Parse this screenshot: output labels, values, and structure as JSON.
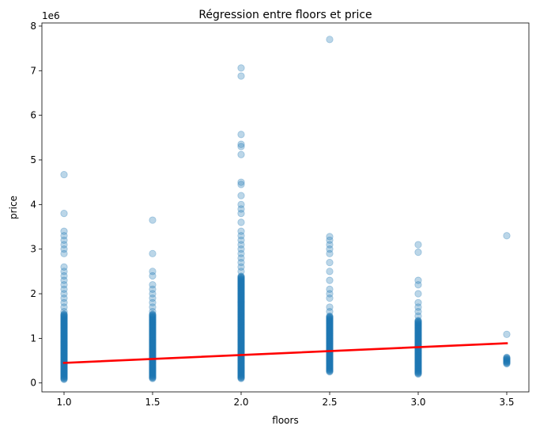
{
  "chart_data": {
    "type": "scatter",
    "title": "Régression entre floors et price",
    "xlabel": "floors",
    "ylabel": "price",
    "y_offset_label": "1e6",
    "xlim": [
      0.875,
      3.625
    ],
    "ylim": [
      -0.2,
      8.07
    ],
    "x_ticks": [
      1.0,
      1.5,
      2.0,
      2.5,
      3.0,
      3.5
    ],
    "x_tick_labels": [
      "1.0",
      "1.5",
      "2.0",
      "2.5",
      "3.0",
      "3.5"
    ],
    "y_ticks": [
      0,
      1,
      2,
      3,
      4,
      5,
      6,
      7,
      8
    ],
    "y_tick_labels": [
      "0",
      "1",
      "2",
      "3",
      "4",
      "5",
      "6",
      "7",
      "8"
    ],
    "grid": false,
    "point_color": "#1f77b4",
    "line_color": "#ff0000",
    "scatter_columns": [
      {
        "x": 1.0,
        "dense_range": [
          0.08,
          1.55
        ],
        "outliers": [
          1.6,
          1.7,
          1.8,
          1.9,
          2.0,
          2.1,
          2.2,
          2.3,
          2.4,
          2.5,
          2.6,
          2.9,
          3.0,
          3.1,
          3.2,
          3.3,
          3.4,
          3.8,
          4.67
        ]
      },
      {
        "x": 1.5,
        "dense_range": [
          0.1,
          1.55
        ],
        "outliers": [
          1.6,
          1.7,
          1.8,
          1.9,
          2.0,
          2.1,
          2.2,
          2.4,
          2.5,
          2.9,
          3.65
        ]
      },
      {
        "x": 2.0,
        "dense_range": [
          0.1,
          2.4
        ],
        "outliers": [
          2.5,
          2.6,
          2.7,
          2.8,
          2.9,
          3.0,
          3.1,
          3.2,
          3.3,
          3.4,
          3.6,
          3.8,
          3.9,
          4.0,
          4.2,
          4.45,
          4.5,
          5.12,
          5.3,
          5.35,
          5.57,
          6.88,
          7.06
        ]
      },
      {
        "x": 2.5,
        "dense_range": [
          0.25,
          1.5
        ],
        "outliers": [
          1.6,
          1.7,
          1.9,
          2.0,
          2.1,
          2.3,
          2.5,
          2.7,
          2.9,
          3.0,
          3.1,
          3.2,
          3.28,
          7.7
        ]
      },
      {
        "x": 3.0,
        "dense_range": [
          0.2,
          1.4
        ],
        "outliers": [
          1.5,
          1.6,
          1.7,
          1.8,
          2.0,
          2.2,
          2.3,
          2.93,
          3.1
        ]
      },
      {
        "x": 3.5,
        "dense_range": [
          0.43,
          0.58
        ],
        "outliers": [
          1.09,
          3.3
        ]
      }
    ],
    "regression_line": {
      "x": [
        1.0,
        3.5
      ],
      "y": [
        0.45,
        0.89
      ]
    }
  }
}
